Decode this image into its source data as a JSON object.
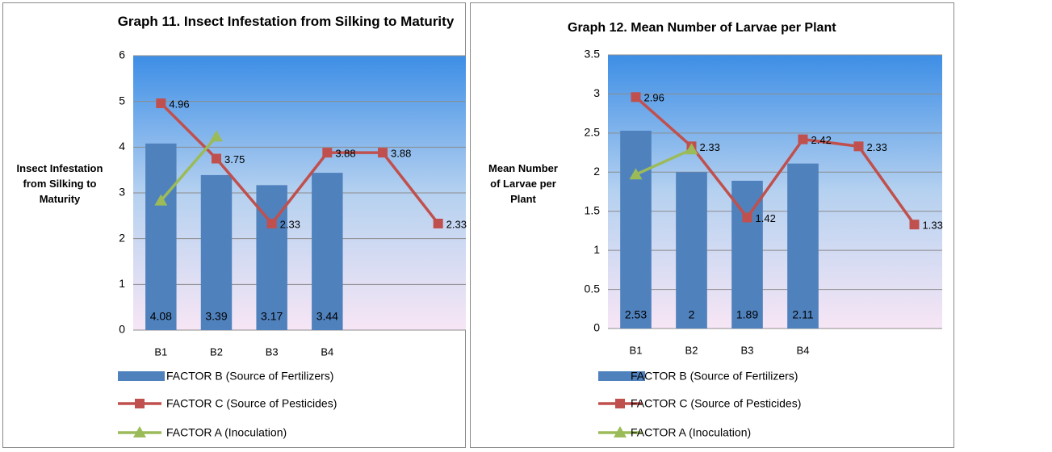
{
  "chart_data": [
    {
      "type": "bar",
      "title": "Graph 11.  Insect Infestation from Silking to Maturity",
      "y_label": "Insect Infestation from Silking to Maturity",
      "categories": [
        "B1",
        "B2",
        "B3",
        "B4",
        null,
        null
      ],
      "series": [
        {
          "name": "FACTOR B (Source of Fertilizers)",
          "type": "bar",
          "color": "#4f81bd",
          "values": [
            4.08,
            3.39,
            3.17,
            3.44,
            null,
            null
          ]
        },
        {
          "name": "FACTOR C (Source of Pesticides)",
          "type": "line",
          "marker": "square",
          "color": "#c0504d",
          "values": [
            4.96,
            3.75,
            2.33,
            3.88,
            3.88,
            2.33
          ]
        },
        {
          "name": "FACTOR A (Inoculation)",
          "type": "line",
          "marker": "triangle",
          "color": "#9bbb59",
          "values": [
            2.83,
            4.23,
            null,
            null,
            null,
            null
          ]
        }
      ],
      "ylim": [
        0,
        6
      ],
      "yticks": [
        0,
        1,
        2,
        3,
        4,
        5,
        6
      ],
      "grid": true
    },
    {
      "type": "bar",
      "title": "Graph 12.  Mean Number of Larvae per Plant",
      "y_label": "Mean Number of Larvae per Plant",
      "categories": [
        "B1",
        "B2",
        "B3",
        "B4",
        null,
        null
      ],
      "series": [
        {
          "name": "FACTOR B (Source of Fertilizers)",
          "type": "bar",
          "color": "#4f81bd",
          "values": [
            2.53,
            2,
            1.89,
            2.11,
            null,
            null
          ]
        },
        {
          "name": "FACTOR C (Source of Pesticides)",
          "type": "line",
          "marker": "square",
          "color": "#c0504d",
          "values": [
            2.96,
            2.33,
            1.42,
            2.42,
            2.33,
            1.33
          ]
        },
        {
          "name": "FACTOR A (Inoculation)",
          "type": "line",
          "marker": "triangle",
          "color": "#9bbb59",
          "values": [
            1.97,
            2.29,
            null,
            null,
            null,
            null
          ]
        }
      ],
      "ylim": [
        0,
        3.5
      ],
      "yticks": [
        0,
        0.5,
        1,
        1.5,
        2,
        2.5,
        3,
        3.5
      ],
      "grid": true
    }
  ]
}
